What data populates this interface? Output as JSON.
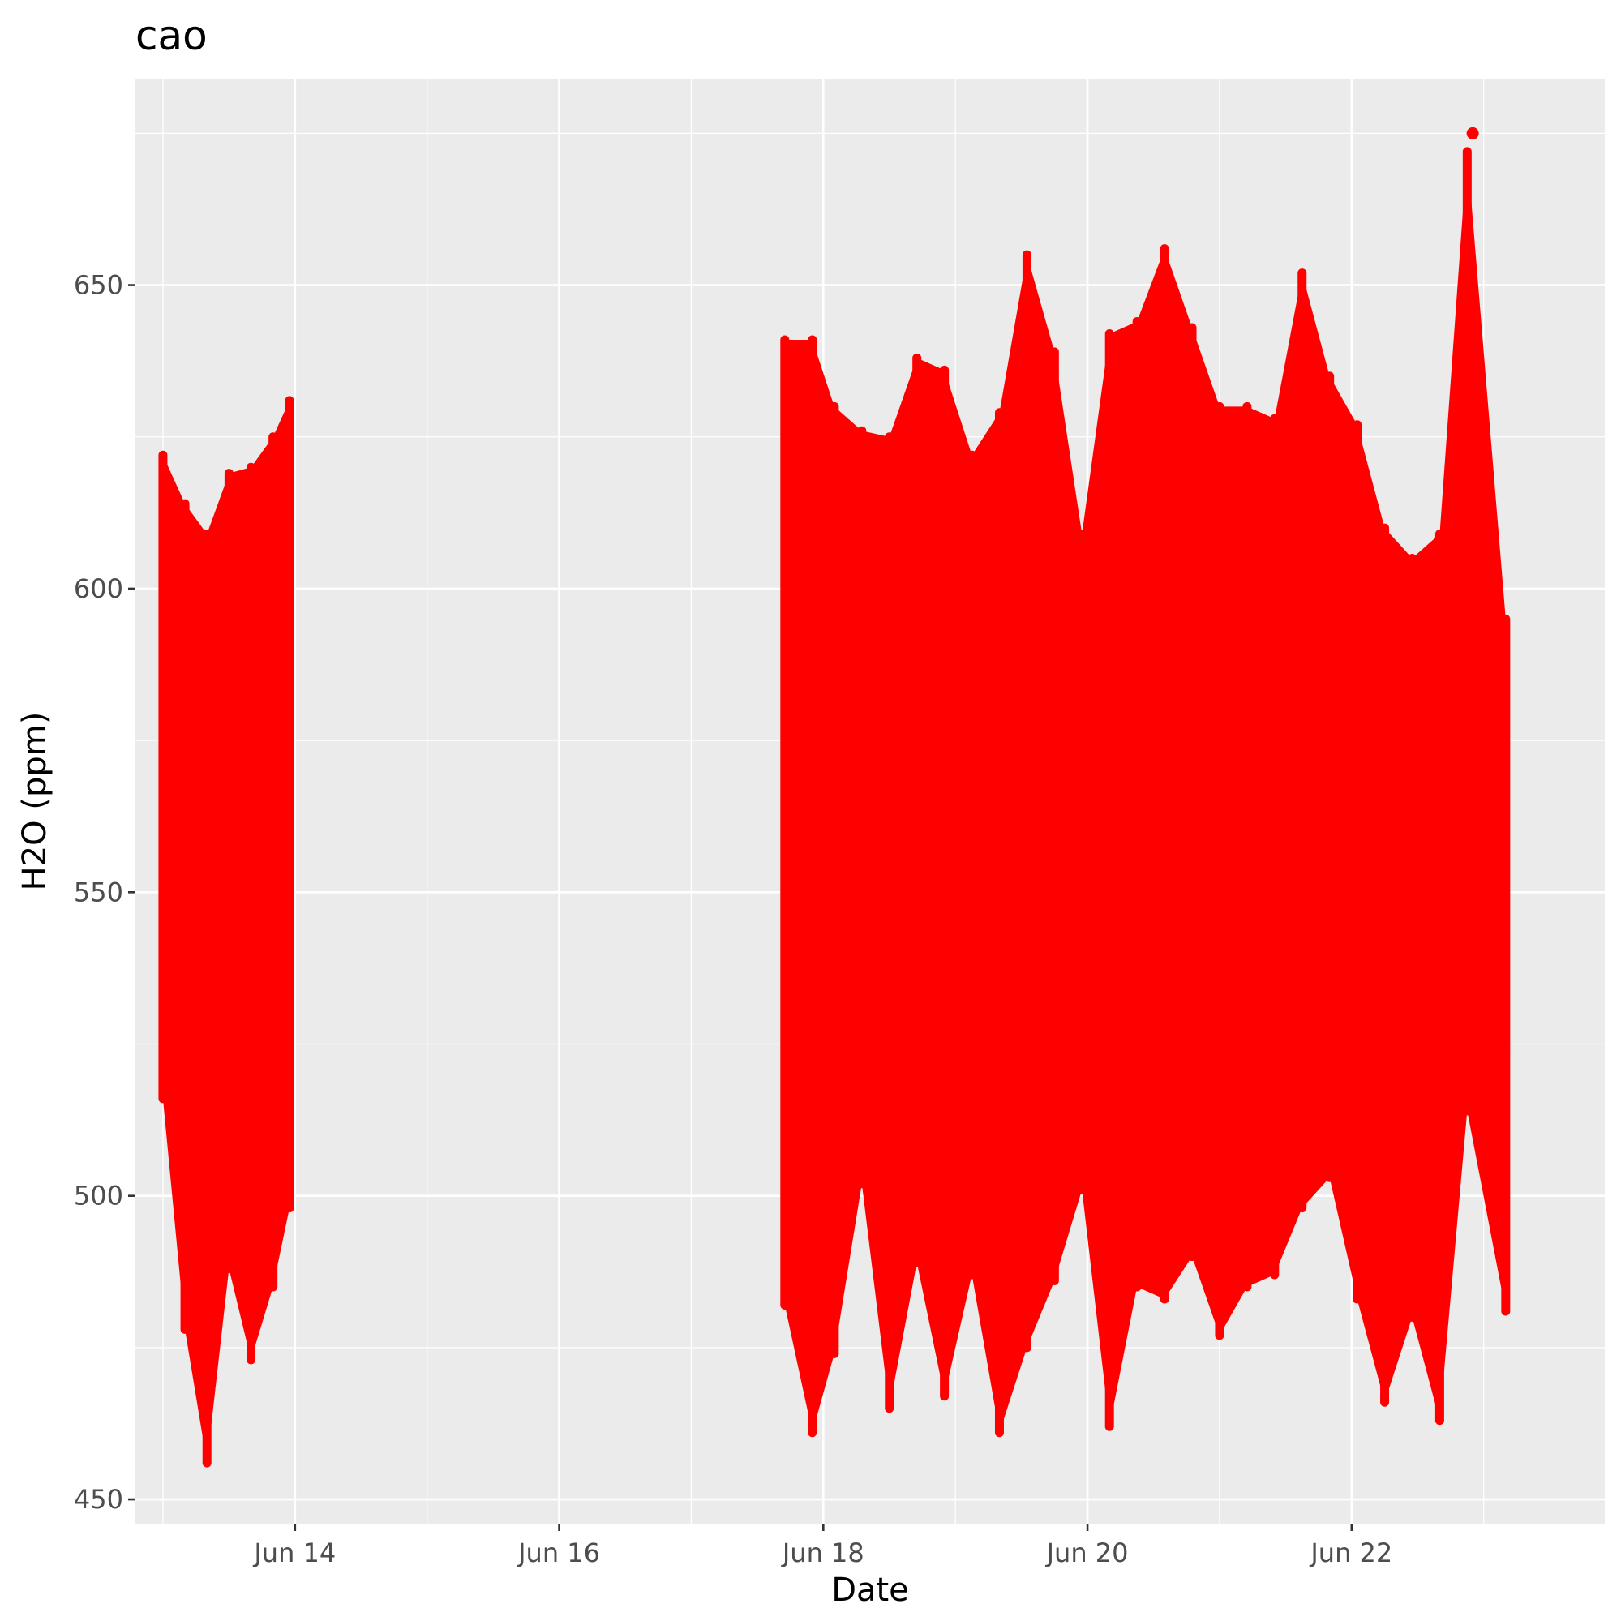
{
  "chart_data": {
    "type": "scatter",
    "title": "cao",
    "xlabel": "Date",
    "ylabel": "H2O (ppm)",
    "x_type": "date",
    "xlim": [
      "2023-06-12T19:00",
      "2023-06-23T22:00"
    ],
    "ylim": [
      446,
      684
    ],
    "x_ticks": [
      {
        "date": "2023-06-14",
        "label": "Jun 14"
      },
      {
        "date": "2023-06-16",
        "label": "Jun 16"
      },
      {
        "date": "2023-06-18",
        "label": "Jun 18"
      },
      {
        "date": "2023-06-20",
        "label": "Jun 20"
      },
      {
        "date": "2023-06-22",
        "label": "Jun 22"
      }
    ],
    "y_ticks": [
      450,
      500,
      550,
      600,
      650
    ],
    "grid": true,
    "legend": "none",
    "series": [
      {
        "color": "#ff0000",
        "x": [
          "2023-06-13T00:00",
          "2023-06-13T04:00",
          "2023-06-13T08:00",
          "2023-06-13T12:00",
          "2023-06-13T16:00",
          "2023-06-13T20:00",
          "2023-06-13T23:00",
          "2023-06-17T17:00",
          "2023-06-17T22:00",
          "2023-06-18T02:00",
          "2023-06-18T07:00",
          "2023-06-18T12:00",
          "2023-06-18T17:00",
          "2023-06-18T22:00",
          "2023-06-19T03:00",
          "2023-06-19T08:00",
          "2023-06-19T13:00",
          "2023-06-19T18:00",
          "2023-06-19T23:00",
          "2023-06-20T04:00",
          "2023-06-20T09:00",
          "2023-06-20T14:00",
          "2023-06-20T19:00",
          "2023-06-21T00:00",
          "2023-06-21T05:00",
          "2023-06-21T10:00",
          "2023-06-21T15:00",
          "2023-06-21T20:00",
          "2023-06-22T01:00",
          "2023-06-22T06:00",
          "2023-06-22T11:00",
          "2023-06-22T16:00",
          "2023-06-22T21:00",
          "2023-06-23T04:00"
        ],
        "y_min": [
          516,
          478,
          456,
          488,
          473,
          485,
          498,
          482,
          461,
          474,
          502,
          465,
          489,
          467,
          487,
          461,
          475,
          486,
          501,
          462,
          485,
          483,
          490,
          477,
          485,
          487,
          498,
          503,
          483,
          466,
          480,
          463,
          514,
          481
        ],
        "y_max": [
          622,
          614,
          609,
          619,
          620,
          625,
          631,
          641,
          641,
          630,
          626,
          625,
          638,
          636,
          622,
          629,
          655,
          639,
          609,
          642,
          644,
          656,
          643,
          630,
          630,
          628,
          652,
          635,
          627,
          610,
          605,
          609,
          672,
          595
        ],
        "point_max": {
          "x": "2023-06-22T22:00",
          "y": 675
        }
      }
    ]
  }
}
